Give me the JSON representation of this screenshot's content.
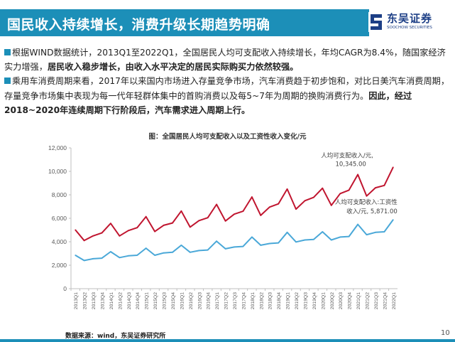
{
  "header": {
    "title": "国民收入持续增长，消费升级长期趋势明确",
    "logo_cn": "东吴证券",
    "logo_en": "SOOCHOW SECURITIES",
    "logo_mark": "SCS"
  },
  "bullets": {
    "p1_plain": "根据WIND数据统计，2013Q1至2022Q1，全国居民人均可支配收入持续增长，年均CAGR为8.4%，随国家经济实力增强，",
    "p1_bold": "居民收入稳步增长，由收入水平决定的居民实际购买力依然较强。",
    "p2_plain": "乘用车消费周期来看，2017年以来国内市场进入存量竞争市场，汽车消费趋于初步饱和，对比日美汽车消费周期，存量竞争市场集中表现为每一代年轻群体集中的首购消费以及每5~7年为周期的换购消费行为。",
    "p2_bold": "因此，经过2018~2020年连续周期下行阶段后，汽车需求进入周期上行。"
  },
  "chart_caption": "图：全国居民人均可支配收入以及工资性收入变化/元",
  "source": "数据来源：wind，东吴证券研究所",
  "page_number": "10",
  "colors": {
    "accent": "#1c8fb8",
    "series_disposable": "#c0152f",
    "series_wage": "#4aa8d8",
    "brand": "#1d3f86"
  },
  "chart_data": {
    "type": "line",
    "title": "图：全国居民人均可支配收入以及工资性收入变化/元",
    "xlabel": "",
    "ylabel": "",
    "ylim": [
      0,
      12000
    ],
    "yticks": [
      0,
      2000,
      4000,
      6000,
      8000,
      10000,
      12000
    ],
    "ytick_labels": [
      "0",
      "2,000",
      "4,000",
      "6,000",
      "8,000",
      "10,000",
      "12,000"
    ],
    "grid": false,
    "x": [
      "2013Q1",
      "2013Q2",
      "2013Q3",
      "2013Q4",
      "2014Q1",
      "2014Q2",
      "2014Q3",
      "2014Q4",
      "2015Q1",
      "2015Q2",
      "2015Q3",
      "2015Q4",
      "2016Q1",
      "2016Q2",
      "2016Q3",
      "2016Q4",
      "2017Q1",
      "2017Q2",
      "2017Q3",
      "2017Q4",
      "2018Q1",
      "2018Q2",
      "2018Q3",
      "2018Q4",
      "2019Q1",
      "2019Q2",
      "2019Q3",
      "2019Q4",
      "2020Q1",
      "2020Q2",
      "2020Q3",
      "2020Q4",
      "2021Q1",
      "2021Q2",
      "2021Q3",
      "2021Q4",
      "2022Q1"
    ],
    "series": [
      {
        "name": "人均可支配收入/元",
        "color": "#c0152f",
        "annotation": [
          "人均可支配收入/元,",
          "10,345.00"
        ],
        "values": [
          5006,
          4100,
          4500,
          4750,
          5562,
          4500,
          4950,
          5200,
          6142,
          4870,
          5400,
          5600,
          6619,
          5250,
          5800,
          6050,
          7184,
          5770,
          6350,
          6600,
          7815,
          6250,
          6950,
          7230,
          8493,
          6780,
          7500,
          7780,
          8561,
          7100,
          8100,
          8400,
          9730,
          7900,
          8600,
          8800,
          10345
        ]
      },
      {
        "name": "人均可支配收入:工资性收入/元",
        "color": "#4aa8d8",
        "annotation": [
          "人均可支配收入:工资性",
          "收入/元, 5,871.00"
        ],
        "values": [
          2850,
          2400,
          2550,
          2600,
          3150,
          2650,
          2800,
          2850,
          3450,
          2850,
          3050,
          3100,
          3700,
          3100,
          3250,
          3300,
          4050,
          3400,
          3550,
          3600,
          4400,
          3700,
          3850,
          3900,
          4800,
          3980,
          4150,
          4200,
          4850,
          4150,
          4400,
          4450,
          5480,
          4600,
          4800,
          4850,
          5871
        ]
      }
    ]
  }
}
